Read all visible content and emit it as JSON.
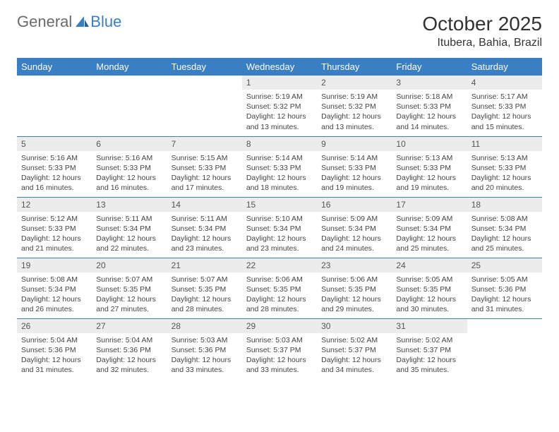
{
  "brand": {
    "part1": "General",
    "part2": "Blue"
  },
  "title": "October 2025",
  "location": "Itubera, Bahia, Brazil",
  "colors": {
    "header_bg": "#3a7fc4",
    "header_text": "#ffffff",
    "daynum_bg": "#ececec",
    "row_border": "#3a7fc4",
    "page_bg": "#ffffff",
    "body_text": "#444444"
  },
  "weekdays": [
    "Sunday",
    "Monday",
    "Tuesday",
    "Wednesday",
    "Thursday",
    "Friday",
    "Saturday"
  ],
  "weeks": [
    [
      null,
      null,
      null,
      {
        "day": "1",
        "sunrise": "5:19 AM",
        "sunset": "5:32 PM",
        "daylight": "12 hours and 13 minutes."
      },
      {
        "day": "2",
        "sunrise": "5:19 AM",
        "sunset": "5:32 PM",
        "daylight": "12 hours and 13 minutes."
      },
      {
        "day": "3",
        "sunrise": "5:18 AM",
        "sunset": "5:33 PM",
        "daylight": "12 hours and 14 minutes."
      },
      {
        "day": "4",
        "sunrise": "5:17 AM",
        "sunset": "5:33 PM",
        "daylight": "12 hours and 15 minutes."
      }
    ],
    [
      {
        "day": "5",
        "sunrise": "5:16 AM",
        "sunset": "5:33 PM",
        "daylight": "12 hours and 16 minutes."
      },
      {
        "day": "6",
        "sunrise": "5:16 AM",
        "sunset": "5:33 PM",
        "daylight": "12 hours and 16 minutes."
      },
      {
        "day": "7",
        "sunrise": "5:15 AM",
        "sunset": "5:33 PM",
        "daylight": "12 hours and 17 minutes."
      },
      {
        "day": "8",
        "sunrise": "5:14 AM",
        "sunset": "5:33 PM",
        "daylight": "12 hours and 18 minutes."
      },
      {
        "day": "9",
        "sunrise": "5:14 AM",
        "sunset": "5:33 PM",
        "daylight": "12 hours and 19 minutes."
      },
      {
        "day": "10",
        "sunrise": "5:13 AM",
        "sunset": "5:33 PM",
        "daylight": "12 hours and 19 minutes."
      },
      {
        "day": "11",
        "sunrise": "5:13 AM",
        "sunset": "5:33 PM",
        "daylight": "12 hours and 20 minutes."
      }
    ],
    [
      {
        "day": "12",
        "sunrise": "5:12 AM",
        "sunset": "5:33 PM",
        "daylight": "12 hours and 21 minutes."
      },
      {
        "day": "13",
        "sunrise": "5:11 AM",
        "sunset": "5:34 PM",
        "daylight": "12 hours and 22 minutes."
      },
      {
        "day": "14",
        "sunrise": "5:11 AM",
        "sunset": "5:34 PM",
        "daylight": "12 hours and 23 minutes."
      },
      {
        "day": "15",
        "sunrise": "5:10 AM",
        "sunset": "5:34 PM",
        "daylight": "12 hours and 23 minutes."
      },
      {
        "day": "16",
        "sunrise": "5:09 AM",
        "sunset": "5:34 PM",
        "daylight": "12 hours and 24 minutes."
      },
      {
        "day": "17",
        "sunrise": "5:09 AM",
        "sunset": "5:34 PM",
        "daylight": "12 hours and 25 minutes."
      },
      {
        "day": "18",
        "sunrise": "5:08 AM",
        "sunset": "5:34 PM",
        "daylight": "12 hours and 25 minutes."
      }
    ],
    [
      {
        "day": "19",
        "sunrise": "5:08 AM",
        "sunset": "5:34 PM",
        "daylight": "12 hours and 26 minutes."
      },
      {
        "day": "20",
        "sunrise": "5:07 AM",
        "sunset": "5:35 PM",
        "daylight": "12 hours and 27 minutes."
      },
      {
        "day": "21",
        "sunrise": "5:07 AM",
        "sunset": "5:35 PM",
        "daylight": "12 hours and 28 minutes."
      },
      {
        "day": "22",
        "sunrise": "5:06 AM",
        "sunset": "5:35 PM",
        "daylight": "12 hours and 28 minutes."
      },
      {
        "day": "23",
        "sunrise": "5:06 AM",
        "sunset": "5:35 PM",
        "daylight": "12 hours and 29 minutes."
      },
      {
        "day": "24",
        "sunrise": "5:05 AM",
        "sunset": "5:35 PM",
        "daylight": "12 hours and 30 minutes."
      },
      {
        "day": "25",
        "sunrise": "5:05 AM",
        "sunset": "5:36 PM",
        "daylight": "12 hours and 31 minutes."
      }
    ],
    [
      {
        "day": "26",
        "sunrise": "5:04 AM",
        "sunset": "5:36 PM",
        "daylight": "12 hours and 31 minutes."
      },
      {
        "day": "27",
        "sunrise": "5:04 AM",
        "sunset": "5:36 PM",
        "daylight": "12 hours and 32 minutes."
      },
      {
        "day": "28",
        "sunrise": "5:03 AM",
        "sunset": "5:36 PM",
        "daylight": "12 hours and 33 minutes."
      },
      {
        "day": "29",
        "sunrise": "5:03 AM",
        "sunset": "5:37 PM",
        "daylight": "12 hours and 33 minutes."
      },
      {
        "day": "30",
        "sunrise": "5:02 AM",
        "sunset": "5:37 PM",
        "daylight": "12 hours and 34 minutes."
      },
      {
        "day": "31",
        "sunrise": "5:02 AM",
        "sunset": "5:37 PM",
        "daylight": "12 hours and 35 minutes."
      },
      null
    ]
  ],
  "labels": {
    "sunrise": "Sunrise: ",
    "sunset": "Sunset: ",
    "daylight": "Daylight: "
  }
}
